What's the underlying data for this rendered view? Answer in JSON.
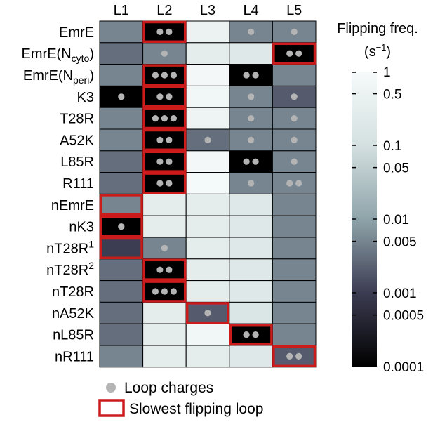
{
  "chart_data": {
    "type": "heatmap",
    "columns": [
      "L1",
      "L2",
      "L3",
      "L4",
      "L5"
    ],
    "rows": [
      {
        "label": "EmrE",
        "sub": "",
        "sup": "",
        "after": ""
      },
      {
        "label": "EmrE(N",
        "sub": "cyto",
        "sup": "",
        "after": ")"
      },
      {
        "label": "EmrE(N",
        "sub": "peri",
        "sup": "",
        "after": ")"
      },
      {
        "label": "K3",
        "sub": "",
        "sup": "",
        "after": ""
      },
      {
        "label": "T28R",
        "sub": "",
        "sup": "",
        "after": ""
      },
      {
        "label": "A52K",
        "sub": "",
        "sup": "",
        "after": ""
      },
      {
        "label": "L85R",
        "sub": "",
        "sup": "",
        "after": ""
      },
      {
        "label": "R111",
        "sub": "",
        "sup": "",
        "after": ""
      },
      {
        "label": "nEmrE",
        "sub": "",
        "sup": "",
        "after": ""
      },
      {
        "label": "nK3",
        "sub": "",
        "sup": "",
        "after": ""
      },
      {
        "label": "nT28R",
        "sub": "",
        "sup": "1",
        "after": ""
      },
      {
        "label": "nT28R",
        "sub": "",
        "sup": "2",
        "after": ""
      },
      {
        "label": "nT28R",
        "sub": "",
        "sup": "",
        "after": ""
      },
      {
        "label": "nA52K",
        "sub": "",
        "sup": "",
        "after": ""
      },
      {
        "label": "nL85R",
        "sub": "",
        "sup": "",
        "after": ""
      },
      {
        "label": "nR111",
        "sub": "",
        "sup": "",
        "after": ""
      }
    ],
    "values": [
      [
        0.005,
        0.0001,
        0.5,
        0.005,
        0.005
      ],
      [
        0.003,
        0.005,
        0.3,
        0.2,
        0.0001
      ],
      [
        0.005,
        0.0001,
        0.8,
        0.0001,
        0.005
      ],
      [
        0.0001,
        0.0001,
        0.7,
        0.005,
        0.002
      ],
      [
        0.005,
        0.0001,
        0.6,
        0.005,
        0.005
      ],
      [
        0.005,
        0.0001,
        0.003,
        0.005,
        0.005
      ],
      [
        0.003,
        0.0001,
        0.8,
        0.0001,
        0.005
      ],
      [
        0.003,
        0.0001,
        0.9,
        0.005,
        0.005
      ],
      [
        0.005,
        0.3,
        0.3,
        0.2,
        0.005
      ],
      [
        0.0001,
        0.3,
        0.3,
        0.2,
        0.005
      ],
      [
        0.001,
        0.005,
        0.3,
        0.2,
        0.005
      ],
      [
        0.003,
        0.0001,
        0.3,
        0.2,
        0.005
      ],
      [
        0.003,
        0.0001,
        0.3,
        0.2,
        0.005
      ],
      [
        0.003,
        0.3,
        0.002,
        0.15,
        0.005
      ],
      [
        0.003,
        0.3,
        0.7,
        0.0001,
        0.005
      ],
      [
        0.005,
        0.3,
        0.3,
        0.2,
        0.002
      ]
    ],
    "loop_charges": [
      [
        0,
        2,
        0,
        1,
        1
      ],
      [
        0,
        1,
        0,
        0,
        2
      ],
      [
        0,
        3,
        0,
        2,
        0
      ],
      [
        1,
        2,
        0,
        1,
        1
      ],
      [
        0,
        3,
        0,
        1,
        1
      ],
      [
        0,
        2,
        1,
        1,
        1
      ],
      [
        0,
        2,
        0,
        2,
        1
      ],
      [
        0,
        2,
        0,
        1,
        2
      ],
      [
        0,
        0,
        0,
        0,
        0
      ],
      [
        1,
        0,
        0,
        0,
        0
      ],
      [
        0,
        1,
        0,
        0,
        0
      ],
      [
        0,
        2,
        0,
        0,
        0
      ],
      [
        0,
        3,
        0,
        0,
        0
      ],
      [
        0,
        0,
        1,
        0,
        0
      ],
      [
        0,
        0,
        0,
        2,
        0
      ],
      [
        0,
        0,
        0,
        0,
        2
      ]
    ],
    "slowest_loop_column": [
      1,
      4,
      1,
      1,
      1,
      1,
      1,
      1,
      0,
      0,
      0,
      1,
      1,
      2,
      3,
      4
    ],
    "colorbar": {
      "title": "Flipping freq.",
      "unit_prefix": "(s",
      "unit_sup": "−1",
      "unit_suffix": ")",
      "scale": "log",
      "range": [
        0.0001,
        1
      ],
      "ticks": [
        {
          "value": 1,
          "label": "1"
        },
        {
          "value": 0.5,
          "label": "0.5"
        },
        {
          "value": 0.1,
          "label": "0.1"
        },
        {
          "value": 0.05,
          "label": "0.05"
        },
        {
          "value": 0.01,
          "label": "0.01"
        },
        {
          "value": 0.005,
          "label": "0.005"
        },
        {
          "value": 0.001,
          "label": "0.001"
        },
        {
          "value": 0.0005,
          "label": "0.0005"
        },
        {
          "value": 0.0001,
          "label": "0.0001"
        }
      ],
      "color_stops": [
        "#000000",
        "#3c3c52",
        "#8fa4aa",
        "#d4e0e0",
        "#f6fafa"
      ]
    },
    "legend": {
      "charges_label": "Loop charges",
      "slowest_label": "Slowest flipping loop"
    },
    "colors": {
      "charge_dot": "#b4b4b4",
      "highlight": "#cc1b1b"
    }
  }
}
